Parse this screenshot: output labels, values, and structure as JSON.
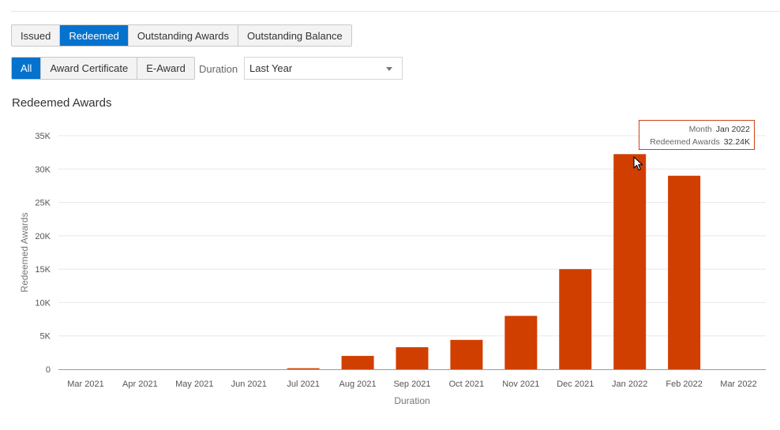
{
  "tabs": [
    {
      "label": "Issued",
      "active": false
    },
    {
      "label": "Redeemed",
      "active": true
    },
    {
      "label": "Outstanding Awards",
      "active": false
    },
    {
      "label": "Outstanding Balance",
      "active": false
    }
  ],
  "filters": [
    {
      "label": "All",
      "active": true
    },
    {
      "label": "Award Certificate",
      "active": false
    },
    {
      "label": "E-Award",
      "active": false
    }
  ],
  "duration": {
    "label": "Duration",
    "selected": "Last Year"
  },
  "tooltip": {
    "month_label": "Month",
    "month_value": "Jan 2022",
    "metric_label": "Redeemed Awards",
    "metric_value": "32.24K"
  },
  "colors": {
    "bar": "#d03f00",
    "accent": "#0572ce",
    "grid": "#e8e8e8",
    "axis": "#9a9a9a"
  },
  "chart_data": {
    "type": "bar",
    "title": "Redeemed Awards",
    "xlabel": "Duration",
    "ylabel": "Redeemed Awards",
    "categories": [
      "Mar 2021",
      "Apr 2021",
      "May 2021",
      "Jun 2021",
      "Jul 2021",
      "Aug 2021",
      "Sep 2021",
      "Oct 2021",
      "Nov 2021",
      "Dec 2021",
      "Jan 2022",
      "Feb 2022",
      "Mar 2022"
    ],
    "series": [
      {
        "values": [
          0,
          0,
          0,
          0,
          150,
          2000,
          3300,
          4400,
          8000,
          15000,
          32240,
          29000,
          0
        ]
      }
    ],
    "ylim": [
      0,
      35000
    ],
    "yticks": [
      0,
      5000,
      10000,
      15000,
      20000,
      25000,
      30000,
      35000
    ],
    "ytick_labels": [
      "0",
      "5K",
      "10K",
      "15K",
      "20K",
      "25K",
      "30K",
      "35K"
    ],
    "grid": true,
    "legend": "none"
  }
}
